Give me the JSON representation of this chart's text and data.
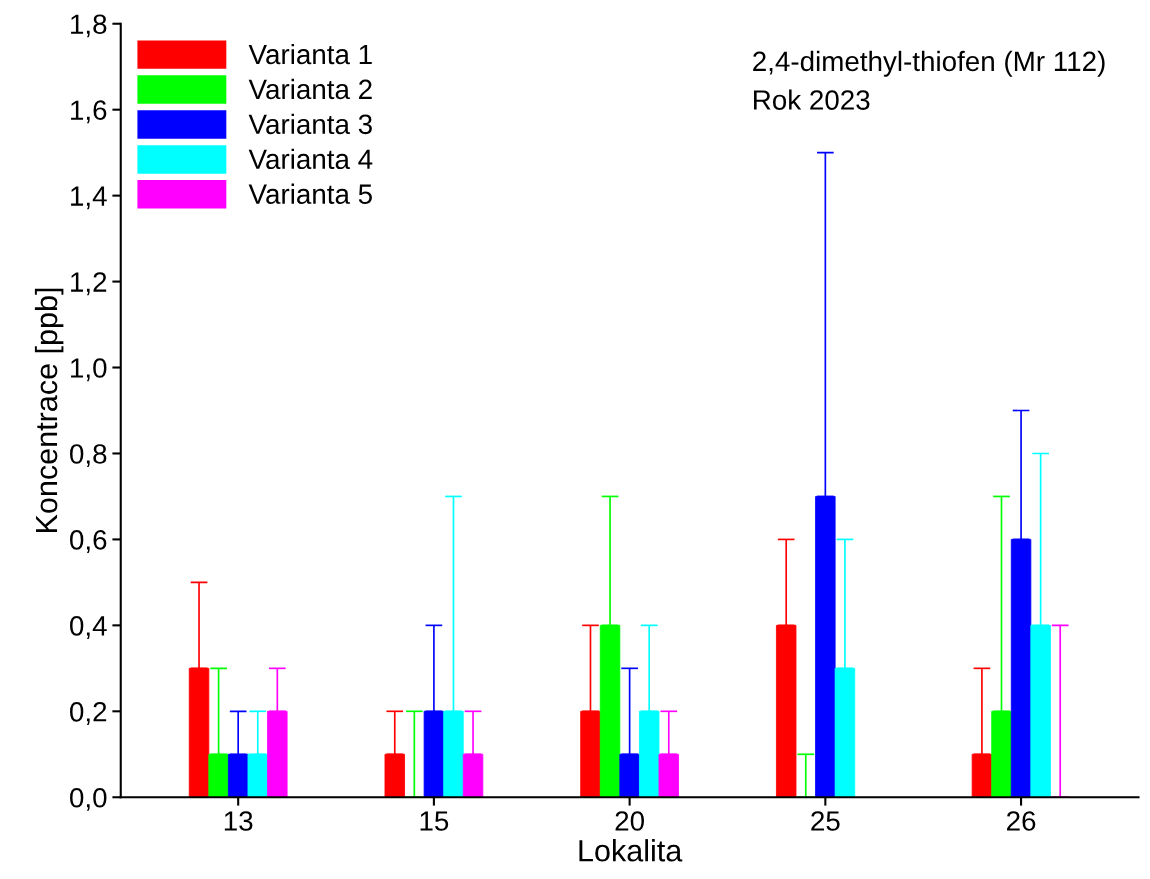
{
  "chart_data": {
    "type": "bar",
    "xlabel": "Lokalita",
    "ylabel": "Koncentrace [ppb]",
    "categories": [
      "13",
      "15",
      "20",
      "25",
      "26"
    ],
    "series": [
      {
        "name": "Varianta 1",
        "color": "#ff0000",
        "values": [
          0.3,
          0.1,
          0.2,
          0.4,
          0.1
        ],
        "errors": [
          [
            0.3,
            0.5
          ],
          [
            0.1,
            0.2
          ],
          [
            0.2,
            0.4
          ],
          [
            0.4,
            0.6
          ],
          [
            0.1,
            0.3
          ]
        ]
      },
      {
        "name": "Varianta 2",
        "color": "#00ff00",
        "values": [
          0.1,
          0.0,
          0.4,
          0.0,
          0.2
        ],
        "errors": [
          [
            0.1,
            0.3
          ],
          [
            0.0,
            0.2
          ],
          [
            0.4,
            0.7
          ],
          [
            0.0,
            0.1
          ],
          [
            0.2,
            0.7
          ]
        ]
      },
      {
        "name": "Varianta 3",
        "color": "#0000ff",
        "values": [
          0.1,
          0.2,
          0.1,
          0.7,
          0.6
        ],
        "errors": [
          [
            0.1,
            0.2
          ],
          [
            0.2,
            0.4
          ],
          [
            0.1,
            0.3
          ],
          [
            0.7,
            1.5
          ],
          [
            0.6,
            0.9
          ]
        ]
      },
      {
        "name": "Varianta 4",
        "color": "#00ffff",
        "values": [
          0.1,
          0.2,
          0.2,
          0.3,
          0.4
        ],
        "errors": [
          [
            0.1,
            0.2
          ],
          [
            0.2,
            0.7
          ],
          [
            0.2,
            0.4
          ],
          [
            0.3,
            0.6
          ],
          [
            0.4,
            0.8
          ]
        ]
      },
      {
        "name": "Varianta 5",
        "color": "#ff00ff",
        "values": [
          0.2,
          0.1,
          0.1,
          null,
          0.0
        ],
        "errors": [
          [
            0.2,
            0.3
          ],
          [
            0.1,
            0.2
          ],
          [
            0.1,
            0.2
          ],
          null,
          [
            0.0,
            0.4
          ]
        ]
      }
    ],
    "ylim": [
      0,
      1.8
    ],
    "yticks": [
      {
        "value": 0,
        "label": "0,0"
      },
      {
        "value": 0.2,
        "label": "0,2"
      },
      {
        "value": 0.4,
        "label": "0,4"
      },
      {
        "value": 0.6,
        "label": "0,6"
      },
      {
        "value": 0.8,
        "label": "0,8"
      },
      {
        "value": 1.0,
        "label": "1,0"
      },
      {
        "value": 1.2,
        "label": "1,2"
      },
      {
        "value": 1.4,
        "label": "1,4"
      },
      {
        "value": 1.6,
        "label": "1,6"
      },
      {
        "value": 1.8,
        "label": "1,8"
      }
    ],
    "annotations": [
      "2,4-dimethyl-thiofen (Mr 112)",
      "Rok 2023"
    ],
    "legend": "top left",
    "grid": false
  }
}
